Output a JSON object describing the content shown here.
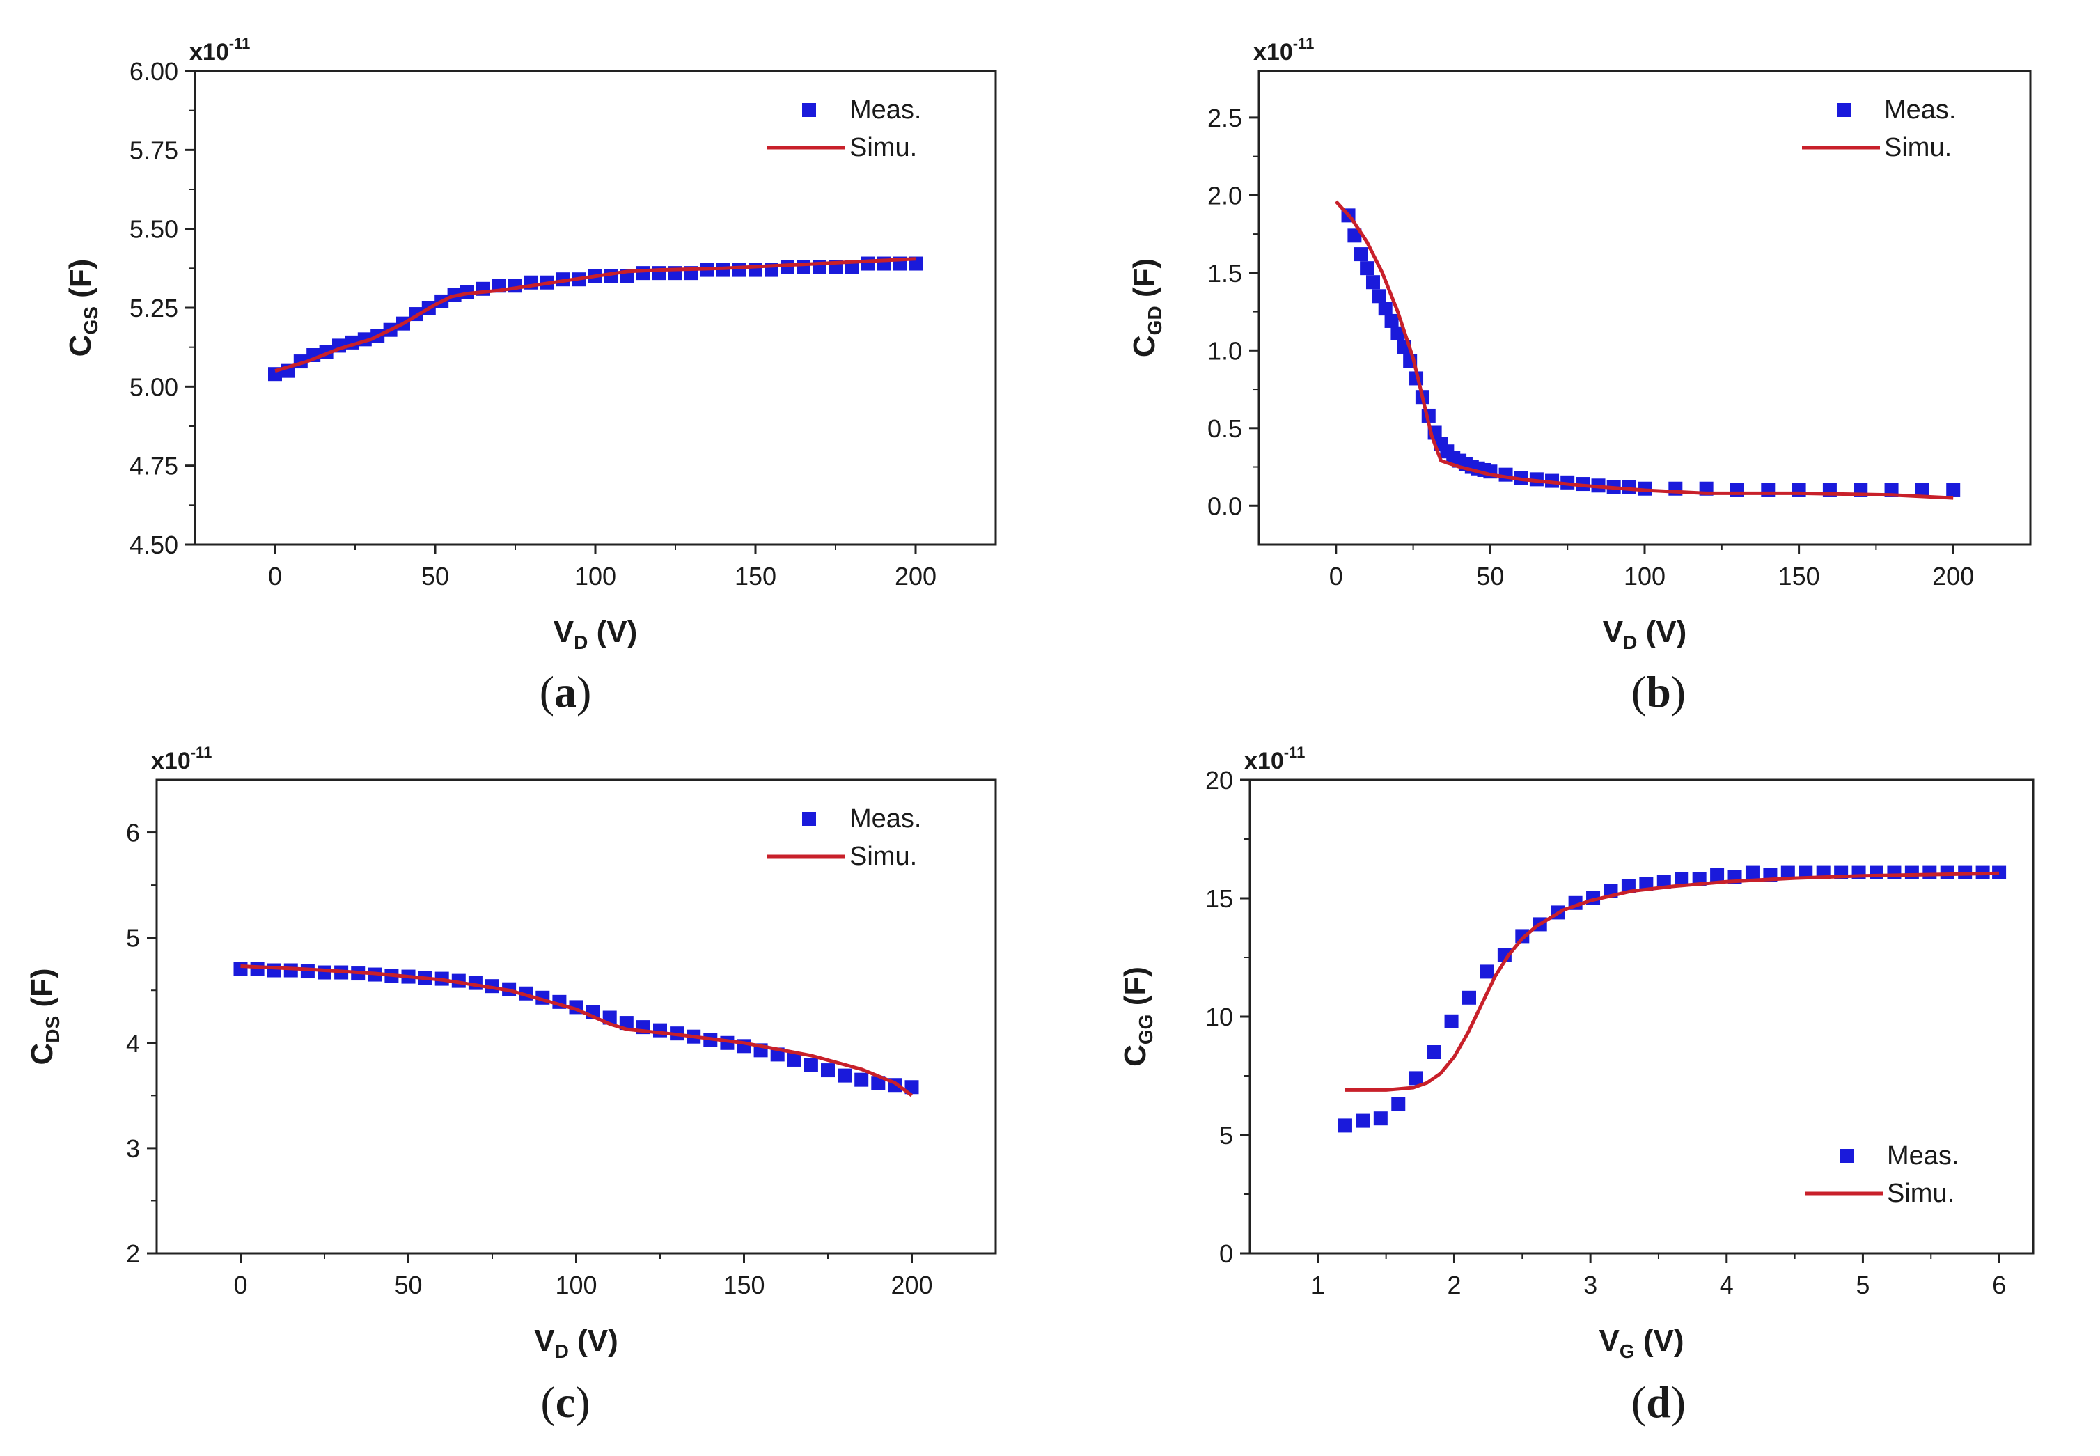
{
  "chart_data": [
    {
      "type": "scatter",
      "panel_label": "a",
      "multiplier": "x10",
      "multiplier_exp": "-11",
      "ylabel_main": "C",
      "ylabel_sub": "GS",
      "ylabel_unit": " (F)",
      "xlabel_main": "V",
      "xlabel_sub": "D",
      "xlabel_unit": " (V)",
      "xlim": [
        -25,
        225
      ],
      "ylim": [
        4.5,
        6.0
      ],
      "xticks": [
        0,
        50,
        100,
        150,
        200
      ],
      "yticks": [
        4.5,
        4.75,
        5.0,
        5.25,
        5.5,
        5.75,
        6.0
      ],
      "xtick_labels": [
        "0",
        "50",
        "100",
        "150",
        "200"
      ],
      "ytick_labels": [
        "4.50",
        "4.75",
        "5.00",
        "5.25",
        "5.50",
        "5.75",
        "6.00"
      ],
      "legend_position": "top-right",
      "series": [
        {
          "name": "Meas.",
          "kind": "markers",
          "color": "#1a1adb",
          "x": [
            0,
            4,
            8,
            12,
            16,
            20,
            24,
            28,
            32,
            36,
            40,
            44,
            48,
            52,
            56,
            60,
            65,
            70,
            75,
            80,
            85,
            90,
            95,
            100,
            105,
            110,
            115,
            120,
            125,
            130,
            135,
            140,
            145,
            150,
            155,
            160,
            165,
            170,
            175,
            180,
            185,
            190,
            195,
            200
          ],
          "y": [
            5.04,
            5.05,
            5.08,
            5.1,
            5.11,
            5.13,
            5.14,
            5.15,
            5.16,
            5.18,
            5.2,
            5.23,
            5.25,
            5.27,
            5.29,
            5.3,
            5.31,
            5.32,
            5.32,
            5.33,
            5.33,
            5.34,
            5.34,
            5.35,
            5.35,
            5.35,
            5.36,
            5.36,
            5.36,
            5.36,
            5.37,
            5.37,
            5.37,
            5.37,
            5.37,
            5.38,
            5.38,
            5.38,
            5.38,
            5.38,
            5.39,
            5.39,
            5.39,
            5.39
          ]
        },
        {
          "name": "Simu.",
          "kind": "line",
          "color": "#c8202a",
          "x": [
            0,
            10,
            20,
            30,
            40,
            50,
            55,
            60,
            70,
            80,
            90,
            100,
            110,
            120,
            140,
            160,
            180,
            200
          ],
          "y": [
            5.05,
            5.08,
            5.12,
            5.15,
            5.2,
            5.26,
            5.285,
            5.295,
            5.305,
            5.32,
            5.335,
            5.35,
            5.365,
            5.37,
            5.375,
            5.385,
            5.395,
            5.405
          ]
        }
      ]
    },
    {
      "type": "scatter",
      "panel_label": "b",
      "multiplier": "x10",
      "multiplier_exp": "-11",
      "ylabel_main": "C",
      "ylabel_sub": "GD",
      "ylabel_unit": " (F)",
      "xlabel_main": "V",
      "xlabel_sub": "D",
      "xlabel_unit": " (V)",
      "xlim": [
        -25,
        225
      ],
      "ylim": [
        -0.25,
        2.8
      ],
      "xticks": [
        0,
        50,
        100,
        150,
        200
      ],
      "yticks": [
        0.0,
        0.5,
        1.0,
        1.5,
        2.0,
        2.5
      ],
      "xtick_labels": [
        "0",
        "50",
        "100",
        "150",
        "200"
      ],
      "ytick_labels": [
        "0.0",
        "0.5",
        "1.0",
        "1.5",
        "2.0",
        "2.5"
      ],
      "legend_position": "top-right",
      "series": [
        {
          "name": "Meas.",
          "kind": "markers",
          "color": "#1a1adb",
          "x": [
            4,
            6,
            8,
            10,
            12,
            14,
            16,
            18,
            20,
            22,
            24,
            26,
            28,
            30,
            32,
            34,
            36,
            38,
            40,
            42,
            44,
            46,
            48,
            50,
            55,
            60,
            65,
            70,
            75,
            80,
            85,
            90,
            95,
            100,
            110,
            120,
            130,
            140,
            150,
            160,
            170,
            180,
            190,
            200
          ],
          "y": [
            1.87,
            1.74,
            1.62,
            1.53,
            1.44,
            1.35,
            1.27,
            1.19,
            1.11,
            1.02,
            0.93,
            0.82,
            0.7,
            0.58,
            0.47,
            0.4,
            0.35,
            0.31,
            0.29,
            0.27,
            0.25,
            0.24,
            0.23,
            0.22,
            0.2,
            0.18,
            0.17,
            0.16,
            0.15,
            0.14,
            0.13,
            0.12,
            0.12,
            0.11,
            0.11,
            0.11,
            0.1,
            0.1,
            0.1,
            0.1,
            0.1,
            0.1,
            0.1,
            0.1
          ]
        },
        {
          "name": "Simu.",
          "kind": "line",
          "color": "#c8202a",
          "x": [
            0,
            5,
            10,
            15,
            20,
            25,
            28,
            31,
            34,
            40,
            50,
            60,
            80,
            100,
            120,
            150,
            180,
            200
          ],
          "y": [
            1.96,
            1.85,
            1.7,
            1.5,
            1.25,
            0.95,
            0.7,
            0.45,
            0.29,
            0.25,
            0.2,
            0.17,
            0.13,
            0.1,
            0.08,
            0.08,
            0.07,
            0.05
          ]
        }
      ]
    },
    {
      "type": "scatter",
      "panel_label": "c",
      "multiplier": "x10",
      "multiplier_exp": "-11",
      "ylabel_main": "C",
      "ylabel_sub": "DS",
      "ylabel_unit": " (F)",
      "xlabel_main": "V",
      "xlabel_sub": "D",
      "xlabel_unit": " (V)",
      "xlim": [
        -25,
        225
      ],
      "ylim": [
        2,
        6.5
      ],
      "xticks": [
        0,
        50,
        100,
        150,
        200
      ],
      "yticks": [
        2,
        3,
        4,
        5,
        6
      ],
      "xtick_labels": [
        "0",
        "50",
        "100",
        "150",
        "200"
      ],
      "ytick_labels": [
        "2",
        "3",
        "4",
        "5",
        "6"
      ],
      "legend_position": "top-right",
      "series": [
        {
          "name": "Meas.",
          "kind": "markers",
          "color": "#1a1adb",
          "x": [
            0,
            5,
            10,
            15,
            20,
            25,
            30,
            35,
            40,
            45,
            50,
            55,
            60,
            65,
            70,
            75,
            80,
            85,
            90,
            95,
            100,
            105,
            110,
            115,
            120,
            125,
            130,
            135,
            140,
            145,
            150,
            155,
            160,
            165,
            170,
            175,
            180,
            185,
            190,
            195,
            200
          ],
          "y": [
            4.7,
            4.7,
            4.69,
            4.69,
            4.68,
            4.67,
            4.67,
            4.66,
            4.65,
            4.64,
            4.63,
            4.62,
            4.61,
            4.59,
            4.57,
            4.54,
            4.51,
            4.47,
            4.43,
            4.39,
            4.34,
            4.29,
            4.24,
            4.19,
            4.15,
            4.12,
            4.09,
            4.06,
            4.03,
            4.0,
            3.97,
            3.93,
            3.89,
            3.84,
            3.79,
            3.74,
            3.69,
            3.65,
            3.62,
            3.6,
            3.58
          ]
        },
        {
          "name": "Simu.",
          "kind": "line",
          "color": "#c8202a",
          "x": [
            0,
            20,
            40,
            60,
            80,
            100,
            110,
            115,
            130,
            150,
            170,
            185,
            195,
            200
          ],
          "y": [
            4.73,
            4.7,
            4.66,
            4.6,
            4.5,
            4.32,
            4.18,
            4.13,
            4.08,
            4.0,
            3.88,
            3.75,
            3.62,
            3.5
          ]
        }
      ]
    },
    {
      "type": "scatter",
      "panel_label": "d",
      "multiplier": "x10",
      "multiplier_exp": "-11",
      "ylabel_main": "C",
      "ylabel_sub": "GG",
      "ylabel_unit": " (F)",
      "xlabel_main": "V",
      "xlabel_sub": "G",
      "xlabel_unit": " (V)",
      "xlim": [
        0.5,
        6.25
      ],
      "ylim": [
        0,
        20
      ],
      "xticks": [
        1,
        2,
        3,
        4,
        5,
        6
      ],
      "yticks": [
        0,
        5,
        10,
        15,
        20
      ],
      "xtick_labels": [
        "1",
        "2",
        "3",
        "4",
        "5",
        "6"
      ],
      "ytick_labels": [
        "0",
        "5",
        "10",
        "15",
        "20"
      ],
      "legend_position": "bottom-right",
      "series": [
        {
          "name": "Meas.",
          "kind": "markers",
          "color": "#1a1adb",
          "x": [
            1.2,
            1.33,
            1.46,
            1.59,
            1.72,
            1.85,
            1.98,
            2.11,
            2.24,
            2.37,
            2.5,
            2.63,
            2.76,
            2.89,
            3.02,
            3.15,
            3.28,
            3.41,
            3.54,
            3.67,
            3.8,
            3.93,
            4.06,
            4.19,
            4.32,
            4.45,
            4.58,
            4.71,
            4.84,
            4.97,
            5.1,
            5.23,
            5.36,
            5.49,
            5.62,
            5.75,
            5.88,
            6.0
          ],
          "y": [
            5.4,
            5.6,
            5.7,
            6.3,
            7.4,
            8.5,
            9.8,
            10.8,
            11.9,
            12.6,
            13.4,
            13.9,
            14.4,
            14.8,
            15.0,
            15.3,
            15.5,
            15.6,
            15.7,
            15.8,
            15.8,
            16.0,
            15.9,
            16.1,
            16.0,
            16.1,
            16.1,
            16.1,
            16.1,
            16.1,
            16.1,
            16.1,
            16.1,
            16.1,
            16.1,
            16.1,
            16.1,
            16.1
          ]
        },
        {
          "name": "Simu.",
          "kind": "line",
          "color": "#c8202a",
          "x": [
            1.2,
            1.5,
            1.7,
            1.8,
            1.9,
            2.0,
            2.1,
            2.2,
            2.3,
            2.4,
            2.5,
            2.6,
            2.8,
            3.0,
            3.3,
            3.6,
            4.0,
            4.5,
            5.0,
            5.5,
            6.0
          ],
          "y": [
            6.9,
            6.9,
            7.0,
            7.2,
            7.6,
            8.3,
            9.3,
            10.5,
            11.7,
            12.6,
            13.3,
            13.8,
            14.5,
            14.9,
            15.3,
            15.5,
            15.7,
            15.85,
            15.95,
            16.0,
            16.05
          ]
        }
      ]
    }
  ]
}
